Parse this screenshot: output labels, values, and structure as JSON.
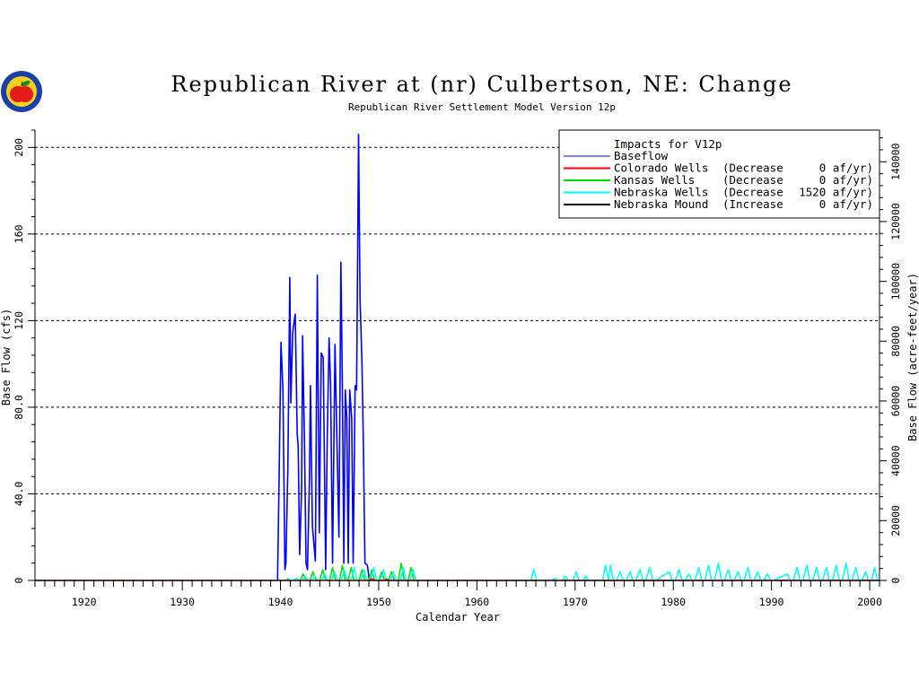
{
  "logo": {
    "icon": "apple-seal-icon",
    "colors": {
      "ring": "#1c3fa8",
      "inner": "#f3d21a",
      "apple": "#e41b1b",
      "leaf": "#1a8c2a"
    }
  },
  "chart_data": {
    "type": "line",
    "title": "Republican River at (nr) Culbertson, NE: Change",
    "subtitle": "Republican River Settlement Model Version 12p",
    "xlabel": "Calendar Year",
    "ylabel": "Base Flow (cfs)",
    "ylabel_right": "Base Flow (acre-feet/year)",
    "xlim": [
      1915,
      2001
    ],
    "ylim": [
      0,
      208
    ],
    "ylim_right": [
      0,
      150579
    ],
    "x_ticks": [
      1920,
      1930,
      1940,
      1950,
      1960,
      1970,
      1980,
      1990,
      2000
    ],
    "y_ticks": [
      "0",
      "40.0",
      "80.0",
      "120",
      "160",
      "200"
    ],
    "y_tick_values": [
      0,
      40,
      80,
      120,
      160,
      200
    ],
    "y_ticks_right": [
      "0",
      "20000",
      "40000",
      "60000",
      "80000",
      "100000",
      "120000",
      "140000"
    ],
    "y_tick_values_right": [
      0,
      20000,
      40000,
      60000,
      80000,
      100000,
      120000,
      140000
    ],
    "grid": "horizontal dashed",
    "legend_position": "top-right",
    "legend_title": "Impacts for V12p",
    "legend": [
      {
        "name": "Baseflow",
        "color": "#0000ff",
        "detail": "",
        "value": ""
      },
      {
        "name": "Colorado Wells",
        "color": "#ff0000",
        "detail": "(Decrease",
        "value": "0 af/yr)"
      },
      {
        "name": "Kansas Wells",
        "color": "#00e000",
        "detail": "(Decrease",
        "value": "0 af/yr)"
      },
      {
        "name": "Nebraska Wells",
        "color": "#00ffff",
        "detail": "(Decrease",
        "value": "1520 af/yr)"
      },
      {
        "name": "Nebraska Mound",
        "color": "#000000",
        "detail": "(Increase",
        "value": "0 af/yr)"
      }
    ],
    "series": [
      {
        "name": "Baseflow",
        "color": "#0000ff",
        "x": [
          1915,
          1939.7,
          1939.85,
          1940.05,
          1940.25,
          1940.45,
          1940.55,
          1940.75,
          1940.95,
          1941.05,
          1941.25,
          1941.5,
          1941.7,
          1941.8,
          1941.95,
          1942.15,
          1942.25,
          1942.45,
          1942.6,
          1942.75,
          1942.95,
          1943.05,
          1943.25,
          1943.55,
          1943.75,
          1943.95,
          1944.15,
          1944.35,
          1944.6,
          1944.75,
          1944.95,
          1945.1,
          1945.3,
          1945.55,
          1945.7,
          1945.95,
          1946.15,
          1946.3,
          1946.45,
          1946.6,
          1946.75,
          1946.9,
          1947.05,
          1947.25,
          1947.4,
          1947.6,
          1947.75,
          1947.95,
          1948.1,
          1948.3,
          1948.45,
          1948.6,
          1948.85,
          1949.05,
          1949.2,
          1949.3,
          1949.45,
          1949.6,
          1949.8,
          1950.1,
          2001
        ],
        "values": [
          0,
          0,
          45,
          110,
          88,
          5,
          8,
          52,
          140,
          82,
          115,
          123,
          68,
          62,
          12,
          42,
          113,
          62,
          8,
          5,
          48,
          90,
          25,
          9,
          141,
          22,
          105,
          103,
          5,
          63,
          112,
          90,
          8,
          109,
          75,
          20,
          147,
          90,
          8,
          88,
          75,
          8,
          88,
          75,
          8,
          90,
          88,
          206,
          130,
          100,
          60,
          8,
          7,
          0,
          0,
          0,
          0,
          0,
          0,
          0,
          0
        ]
      },
      {
        "name": "Kansas Wells",
        "color": "#00e000",
        "x": [
          1915,
          1939.5,
          1942.0,
          1942.3,
          1942.6,
          1943.0,
          1943.3,
          1943.6,
          1944.0,
          1944.3,
          1944.6,
          1945.0,
          1945.3,
          1945.6,
          1946.0,
          1946.3,
          1946.6,
          1946.9,
          1947.2,
          1947.5,
          1948.0,
          1948.3,
          1948.6,
          1949.0,
          1949.3,
          1949.6,
          1950.0,
          1950.3,
          1950.6,
          1951.0,
          1951.3,
          1951.6,
          1952.0,
          1952.3,
          1952.6,
          1953.0,
          1953.3,
          1953.6,
          1954.0,
          2001
        ],
        "values": [
          0,
          0,
          0,
          3,
          0,
          0,
          4,
          0,
          0,
          5,
          0,
          0,
          6,
          0,
          0,
          7,
          0,
          0,
          6,
          0,
          0,
          5,
          0,
          0,
          5,
          0,
          0,
          4,
          0,
          0,
          4,
          0,
          0,
          8,
          0,
          0,
          6,
          0,
          0,
          0
        ]
      },
      {
        "name": "Nebraska Wells",
        "color": "#00ffff",
        "x": [
          1915,
          1940.5,
          1940.8,
          1941.0,
          1941.3,
          1941.6,
          1941.9,
          1942.2,
          1942.5,
          1942.8,
          1943.2,
          1943.5,
          1943.8,
          1944.2,
          1944.5,
          1944.8,
          1945.2,
          1945.5,
          1945.8,
          1946.2,
          1946.5,
          1946.8,
          1947.2,
          1947.5,
          1947.8,
          1948.2,
          1948.5,
          1948.8,
          1949.2,
          1949.5,
          1949.8,
          1950.2,
          1950.5,
          1950.8,
          1951.2,
          1951.5,
          1951.8,
          1952.2,
          1952.5,
          1952.8,
          1953.2,
          1953.5,
          1953.8,
          1965.5,
          1965.8,
          1966.1,
          1967.6,
          1967.9,
          1968.2,
          1968.7,
          1969.0,
          1969.3,
          1969.8,
          1970.1,
          1970.4,
          1970.8,
          1971.1,
          1971.4,
          1972.8,
          1973.1,
          1973.4,
          1973.6,
          1973.9,
          1974.2,
          1974.6,
          1974.9,
          1975.2,
          1975.6,
          1975.9,
          1976.2,
          1976.6,
          1976.9,
          1977.2,
          1977.6,
          1977.9,
          1978.2,
          1979.6,
          1979.9,
          1980.2,
          1980.6,
          1980.9,
          1981.2,
          1981.6,
          1981.9,
          1982.2,
          1982.6,
          1982.9,
          1983.2,
          1983.6,
          1983.9,
          1984.2,
          1984.6,
          1984.9,
          1985.2,
          1985.6,
          1985.9,
          1986.2,
          1986.6,
          1986.9,
          1987.2,
          1987.6,
          1987.9,
          1988.2,
          1988.6,
          1988.9,
          1989.2,
          1989.6,
          1989.9,
          1990.2,
          1991.6,
          1991.9,
          1992.2,
          1992.6,
          1992.9,
          1993.2,
          1993.6,
          1993.9,
          1994.2,
          1994.6,
          1994.9,
          1995.2,
          1995.6,
          1995.9,
          1996.2,
          1996.6,
          1996.9,
          1997.2,
          1997.6,
          1997.9,
          1998.2,
          1998.6,
          1998.9,
          1999.2,
          1999.6,
          1999.9,
          2000.2,
          2000.5,
          2000.8,
          2001
        ],
        "values": [
          0,
          0,
          1,
          0,
          0,
          1,
          0,
          0,
          2,
          0,
          0,
          2,
          0,
          0,
          3,
          0,
          0,
          4,
          0,
          0,
          5,
          0,
          0,
          6,
          0,
          0,
          5,
          0,
          0,
          6,
          0,
          0,
          5,
          0,
          0,
          4,
          0,
          0,
          6,
          0,
          0,
          5,
          0,
          0,
          5,
          0,
          0,
          1,
          0,
          0,
          2,
          0,
          0,
          4,
          0,
          0,
          2,
          0,
          0,
          7,
          0,
          7,
          0,
          0,
          4,
          0,
          0,
          4,
          0,
          0,
          5,
          0,
          0,
          6,
          0,
          0,
          4,
          0,
          0,
          5,
          0,
          0,
          3,
          0,
          0,
          6,
          0,
          0,
          7,
          0,
          0,
          8,
          0,
          0,
          5,
          0,
          0,
          4,
          0,
          0,
          6,
          0,
          0,
          4,
          0,
          0,
          3,
          0,
          0,
          3,
          0,
          0,
          6,
          0,
          0,
          7,
          0,
          0,
          6,
          0,
          0,
          6,
          0,
          0,
          7,
          0,
          0,
          8,
          0,
          0,
          6,
          0,
          0,
          4,
          0,
          0,
          6,
          0,
          0
        ]
      },
      {
        "name": "Colorado Wells",
        "color": "#ff0000",
        "x": [
          1915,
          1949.0,
          1949.3,
          1949.6,
          1950.5,
          1950.8,
          1951.1,
          2001
        ],
        "values": [
          0,
          0,
          0.8,
          0,
          0,
          0.6,
          0,
          0
        ]
      }
    ]
  }
}
